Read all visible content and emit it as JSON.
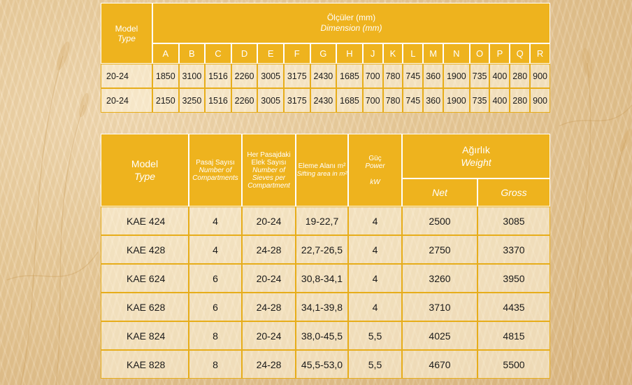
{
  "dimension_table": {
    "model_label": "Model",
    "type_label": "Type",
    "title_tr": "Ölçüler (mm)",
    "title_en": "Dimension (mm)",
    "columns": [
      "A",
      "B",
      "C",
      "D",
      "E",
      "F",
      "G",
      "H",
      "J",
      "K",
      "L",
      "M",
      "N",
      "O",
      "P",
      "Q",
      "R"
    ],
    "rows": [
      {
        "model": "20-24",
        "values": [
          "1850",
          "3100",
          "1516",
          "2260",
          "3005",
          "3175",
          "2430",
          "1685",
          "700",
          "780",
          "745",
          "360",
          "1900",
          "735",
          "400",
          "280",
          "900"
        ]
      },
      {
        "model": "20-24",
        "values": [
          "2150",
          "3250",
          "1516",
          "2260",
          "3005",
          "3175",
          "2430",
          "1685",
          "700",
          "780",
          "745",
          "360",
          "1900",
          "735",
          "400",
          "280",
          "900"
        ]
      }
    ]
  },
  "spec_table": {
    "model_label": "Model",
    "type_label": "Type",
    "pasaj_tr": "Pasaj Sayısı",
    "pasaj_en": "Number of Compartments",
    "elek_tr": "Her Pasajdaki Elek Sayısı",
    "elek_en": "Number of Sieves per Compartment",
    "alan_tr": "Eleme Alanı m²",
    "alan_en": "Sifting area in m²",
    "guc_tr": "Güç",
    "guc_en": "Power",
    "guc_unit": "kW",
    "agirlik_tr": "Ağırlık",
    "agirlik_en": "Weight",
    "net_label": "Net",
    "gross_label": "Gross",
    "rows": [
      {
        "model": "KAE 424",
        "pasaj": "4",
        "elek": "20-24",
        "alan": "19-22,7",
        "guc": "4",
        "net": "2500",
        "gross": "3085"
      },
      {
        "model": "KAE 428",
        "pasaj": "4",
        "elek": "24-28",
        "alan": "22,7-26,5",
        "guc": "4",
        "net": "2750",
        "gross": "3370"
      },
      {
        "model": "KAE 624",
        "pasaj": "6",
        "elek": "20-24",
        "alan": "30,8-34,1",
        "guc": "4",
        "net": "3260",
        "gross": "3950"
      },
      {
        "model": "KAE 628",
        "pasaj": "6",
        "elek": "24-28",
        "alan": "34,1-39,8",
        "guc": "4",
        "net": "3710",
        "gross": "4435"
      },
      {
        "model": "KAE 824",
        "pasaj": "8",
        "elek": "20-24",
        "alan": "38,0-45,5",
        "guc": "5,5",
        "net": "4025",
        "gross": "4815"
      },
      {
        "model": "KAE 828",
        "pasaj": "8",
        "elek": "24-28",
        "alan": "45,5-53,0",
        "guc": "5,5",
        "net": "4670",
        "gross": "5500"
      }
    ]
  },
  "colors": {
    "header": "#eeb31e",
    "border": "#e7ad1a",
    "background": "#e9cc9c"
  }
}
